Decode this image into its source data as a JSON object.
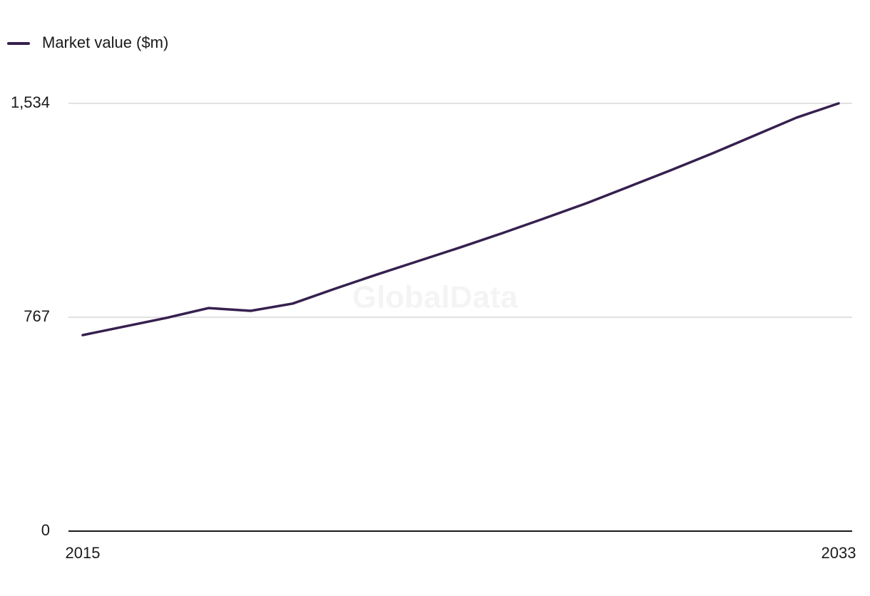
{
  "chart_data": {
    "type": "line",
    "watermark": "GlobalData",
    "categories": [
      "2015",
      null,
      null,
      null,
      null,
      null,
      null,
      null,
      null,
      null,
      null,
      null,
      null,
      null,
      null,
      null,
      null,
      null,
      "2033"
    ],
    "series": [
      {
        "name": "Market value ($m)",
        "color": "#36204f",
        "values": [
          703,
          734,
          765,
          800,
          790,
          816,
          869,
          920,
          969,
          1018,
          1069,
          1122,
          1176,
          1235,
          1294,
          1355,
          1419,
          1483,
          1534
        ]
      }
    ],
    "ylim": [
      0,
      1534
    ],
    "yticks": [
      0,
      767,
      {
        "value": 1534,
        "label": "1,534"
      }
    ],
    "grid": true,
    "legend": "top-left"
  }
}
